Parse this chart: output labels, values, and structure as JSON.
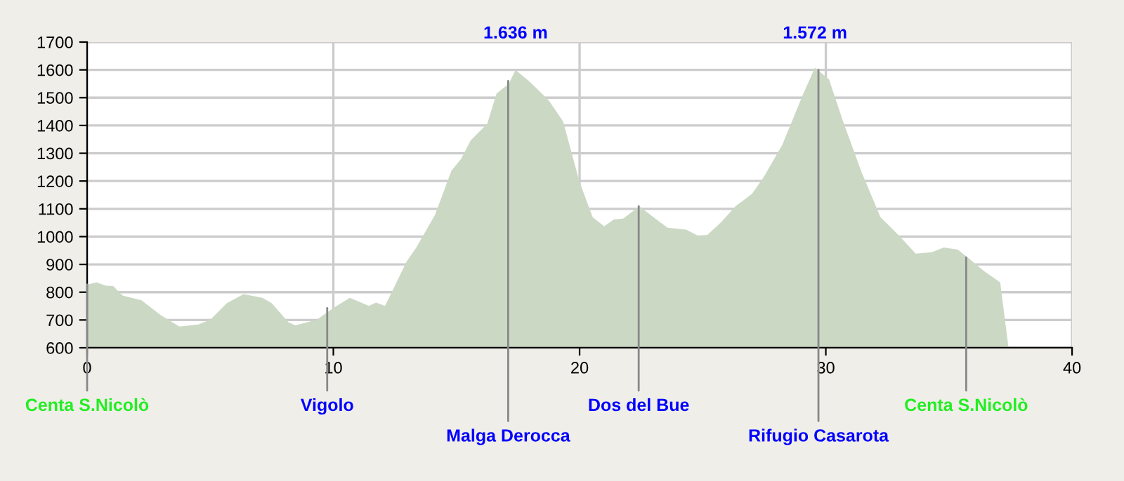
{
  "chart_data": {
    "type": "area",
    "x": [
      0,
      0.38,
      0.77,
      1.06,
      1.44,
      2.21,
      2.98,
      3.75,
      4.52,
      5.0,
      5.67,
      6.35,
      7.12,
      7.5,
      8.17,
      8.46,
      9.33,
      10.0,
      10.67,
      11.44,
      11.73,
      12.1,
      12.98,
      13.37,
      14.13,
      14.8,
      15.19,
      15.58,
      16.25,
      16.63,
      17.12,
      17.4,
      17.98,
      18.75,
      19.33,
      20.0,
      20.53,
      21.0,
      21.39,
      21.77,
      22.43,
      23.0,
      23.57,
      24.33,
      24.81,
      25.19,
      25.76,
      26.33,
      27.0,
      27.47,
      28.23,
      29.09,
      29.56,
      30.13,
      30.7,
      31.46,
      32.22,
      32.98,
      33.65,
      34.3,
      34.79,
      35.36,
      35.84,
      36.41,
      37.08,
      37.42
    ],
    "series": [
      {
        "color": "#cbd8c4",
        "values": [
          827,
          835,
          823,
          822,
          788,
          771,
          718,
          676,
          684,
          701,
          760,
          793,
          780,
          760,
          692,
          681,
          701,
          743,
          780,
          751,
          763,
          751,
          911,
          961,
          1079,
          1238,
          1280,
          1347,
          1406,
          1515,
          1549,
          1600,
          1557,
          1490,
          1414,
          1196,
          1070,
          1037,
          1062,
          1065,
          1109,
          1070,
          1032,
          1025,
          1003,
          1006,
          1053,
          1109,
          1154,
          1213,
          1330,
          1515,
          1608,
          1566,
          1414,
          1230,
          1070,
          1003,
          939,
          944,
          961,
          953,
          919,
          877,
          835,
          600
        ]
      }
    ],
    "xlim": [
      0,
      40
    ],
    "xticks": [
      0,
      10,
      20,
      30,
      40
    ],
    "ylim": [
      600,
      1700
    ],
    "yticks": [
      600,
      700,
      800,
      900,
      1000,
      1100,
      1200,
      1300,
      1400,
      1500,
      1600,
      1700
    ],
    "grid": true,
    "annotations": [
      {
        "text": "1.636 m",
        "x": 17.4,
        "y": 1600
      },
      {
        "text": "1.572 m",
        "x": 29.56,
        "y": 1608
      },
      {
        "text": "Centa S.Nicolò",
        "x": 0,
        "y": 827
      },
      {
        "text": "Vigolo",
        "x": 9.75,
        "y": 743
      },
      {
        "text": "Malga Derocca",
        "x": 17.1,
        "y": 1560
      },
      {
        "text": "Dos del Bue",
        "x": 22.4,
        "y": 1109
      },
      {
        "text": "Rifugio Casarota",
        "x": 29.7,
        "y": 1600
      },
      {
        "text": "Centa S.Nicolò",
        "x": 35.7,
        "y": 925
      }
    ]
  }
}
